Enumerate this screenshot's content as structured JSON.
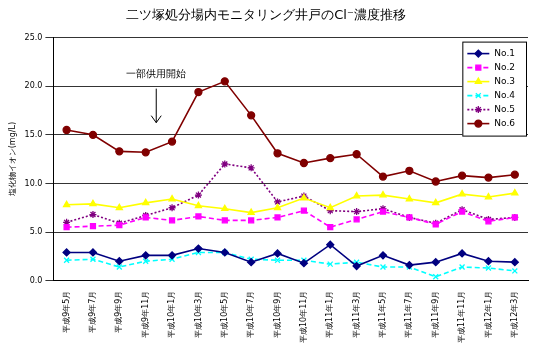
{
  "chart_data": {
    "type": "line",
    "title": "二ツ塚処分場内モニタリング井戸のCl⁻濃度推移",
    "y_label": "塩化物イオン(mg/L)",
    "annotations": [
      {
        "text": "一部供用開始"
      }
    ],
    "categories": [
      "平成9年5月",
      "平成9年7月",
      "平成9年9月",
      "平成9年11月",
      "平成10年1月",
      "平成10年3月",
      "平成10年5月",
      "平成10年7月",
      "平成10年9月",
      "平成10年11月",
      "平成11年1月",
      "平成11年3月",
      "平成11年5月",
      "平成11年7月",
      "平成11年9月",
      "平成11年11月",
      "平成12年1月",
      "平成12年3月"
    ],
    "series": [
      {
        "name": "No.1",
        "color": "#000080",
        "marker": "diamond",
        "line_style": "solid",
        "values": [
          2.9,
          2.9,
          2.0,
          2.6,
          2.6,
          3.3,
          2.9,
          1.9,
          2.8,
          1.8,
          3.7,
          1.5,
          2.6,
          1.6,
          1.9,
          2.8,
          2.0,
          1.9
        ]
      },
      {
        "name": "No.2",
        "color": "#ff00ff",
        "marker": "square",
        "line_style": "dashed",
        "values": [
          5.5,
          5.6,
          5.7,
          6.5,
          6.2,
          6.6,
          6.2,
          6.2,
          6.5,
          7.2,
          5.5,
          6.3,
          7.1,
          6.5,
          5.8,
          7.1,
          6.1,
          6.5
        ]
      },
      {
        "name": "No.3",
        "color": "#ffff00",
        "marker": "triangle",
        "line_style": "solid",
        "values": [
          7.8,
          7.9,
          7.5,
          8.0,
          8.4,
          7.7,
          7.4,
          7.0,
          7.5,
          8.5,
          7.5,
          8.7,
          8.8,
          8.4,
          8.0,
          8.9,
          8.6,
          9.0
        ]
      },
      {
        "name": "No.4",
        "color": "#00ffff",
        "marker": "x",
        "line_style": "dashed",
        "values": [
          2.1,
          2.2,
          1.4,
          2.0,
          2.2,
          2.9,
          2.9,
          2.2,
          2.1,
          2.1,
          1.7,
          1.9,
          1.4,
          1.4,
          0.4,
          1.4,
          1.3,
          1.0
        ]
      },
      {
        "name": "No.5",
        "color": "#800080",
        "marker": "asterisk",
        "line_style": "dotted",
        "values": [
          6.0,
          6.8,
          5.9,
          6.7,
          7.5,
          8.8,
          12.0,
          11.6,
          8.1,
          8.7,
          7.2,
          7.1,
          7.4,
          6.5,
          5.9,
          7.3,
          6.3,
          6.5
        ]
      },
      {
        "name": "No.6",
        "color": "#800000",
        "marker": "circle",
        "line_style": "solid",
        "values": [
          15.5,
          15.0,
          13.3,
          13.2,
          14.3,
          19.4,
          20.5,
          17.0,
          13.1,
          12.1,
          12.6,
          13.0,
          10.7,
          11.3,
          10.2,
          10.8,
          10.6,
          10.9
        ]
      }
    ],
    "ylim": [
      0,
      25
    ],
    "yticks": [
      {
        "value": 0,
        "label": "0.0"
      },
      {
        "value": 5,
        "label": "5.0"
      },
      {
        "value": 10,
        "label": "10.0"
      },
      {
        "value": 15,
        "label": "15.0"
      },
      {
        "value": 20,
        "label": "20.0"
      },
      {
        "value": 25,
        "label": "25.0"
      }
    ],
    "grid": true,
    "legend": "upper right"
  }
}
